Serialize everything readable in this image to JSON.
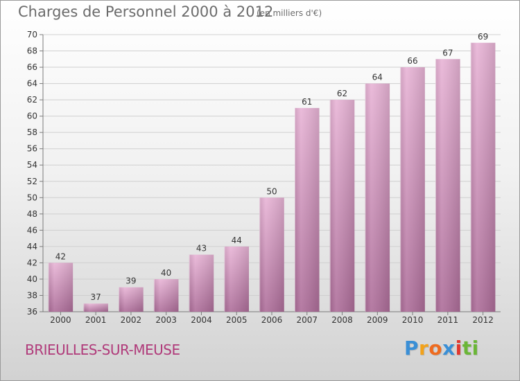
{
  "title": "Charges de Personnel 2000 à 2012",
  "subtitle": "(en milliers d'€)",
  "commune": "BRIEULLES-SUR-MEUSE",
  "logo": {
    "letters": [
      "P",
      "r",
      "o",
      "x",
      "i",
      "t",
      "i"
    ],
    "colors": [
      "#3a8fd6",
      "#f2a21b",
      "#ee6b1f",
      "#3a8fd6",
      "#e2382f",
      "#6bb637",
      "#6bb637"
    ]
  },
  "colors": {
    "bar_light": "#e8b4d6",
    "bar_dark": "#ad6d99",
    "title": "#6b6b6b",
    "commune": "#b03a7a"
  },
  "chart_data": {
    "type": "bar",
    "categories": [
      "2000",
      "2001",
      "2002",
      "2003",
      "2004",
      "2005",
      "2006",
      "2007",
      "2008",
      "2009",
      "2010",
      "2011",
      "2012"
    ],
    "values": [
      42,
      37,
      39,
      40,
      43,
      44,
      50,
      61,
      62,
      64,
      66,
      67,
      69
    ],
    "ylim": [
      36,
      70
    ],
    "yticks": [
      36,
      38,
      40,
      42,
      44,
      46,
      48,
      50,
      52,
      54,
      56,
      58,
      60,
      62,
      64,
      66,
      68,
      70
    ],
    "grid": "horizontal",
    "data_labels": true
  }
}
